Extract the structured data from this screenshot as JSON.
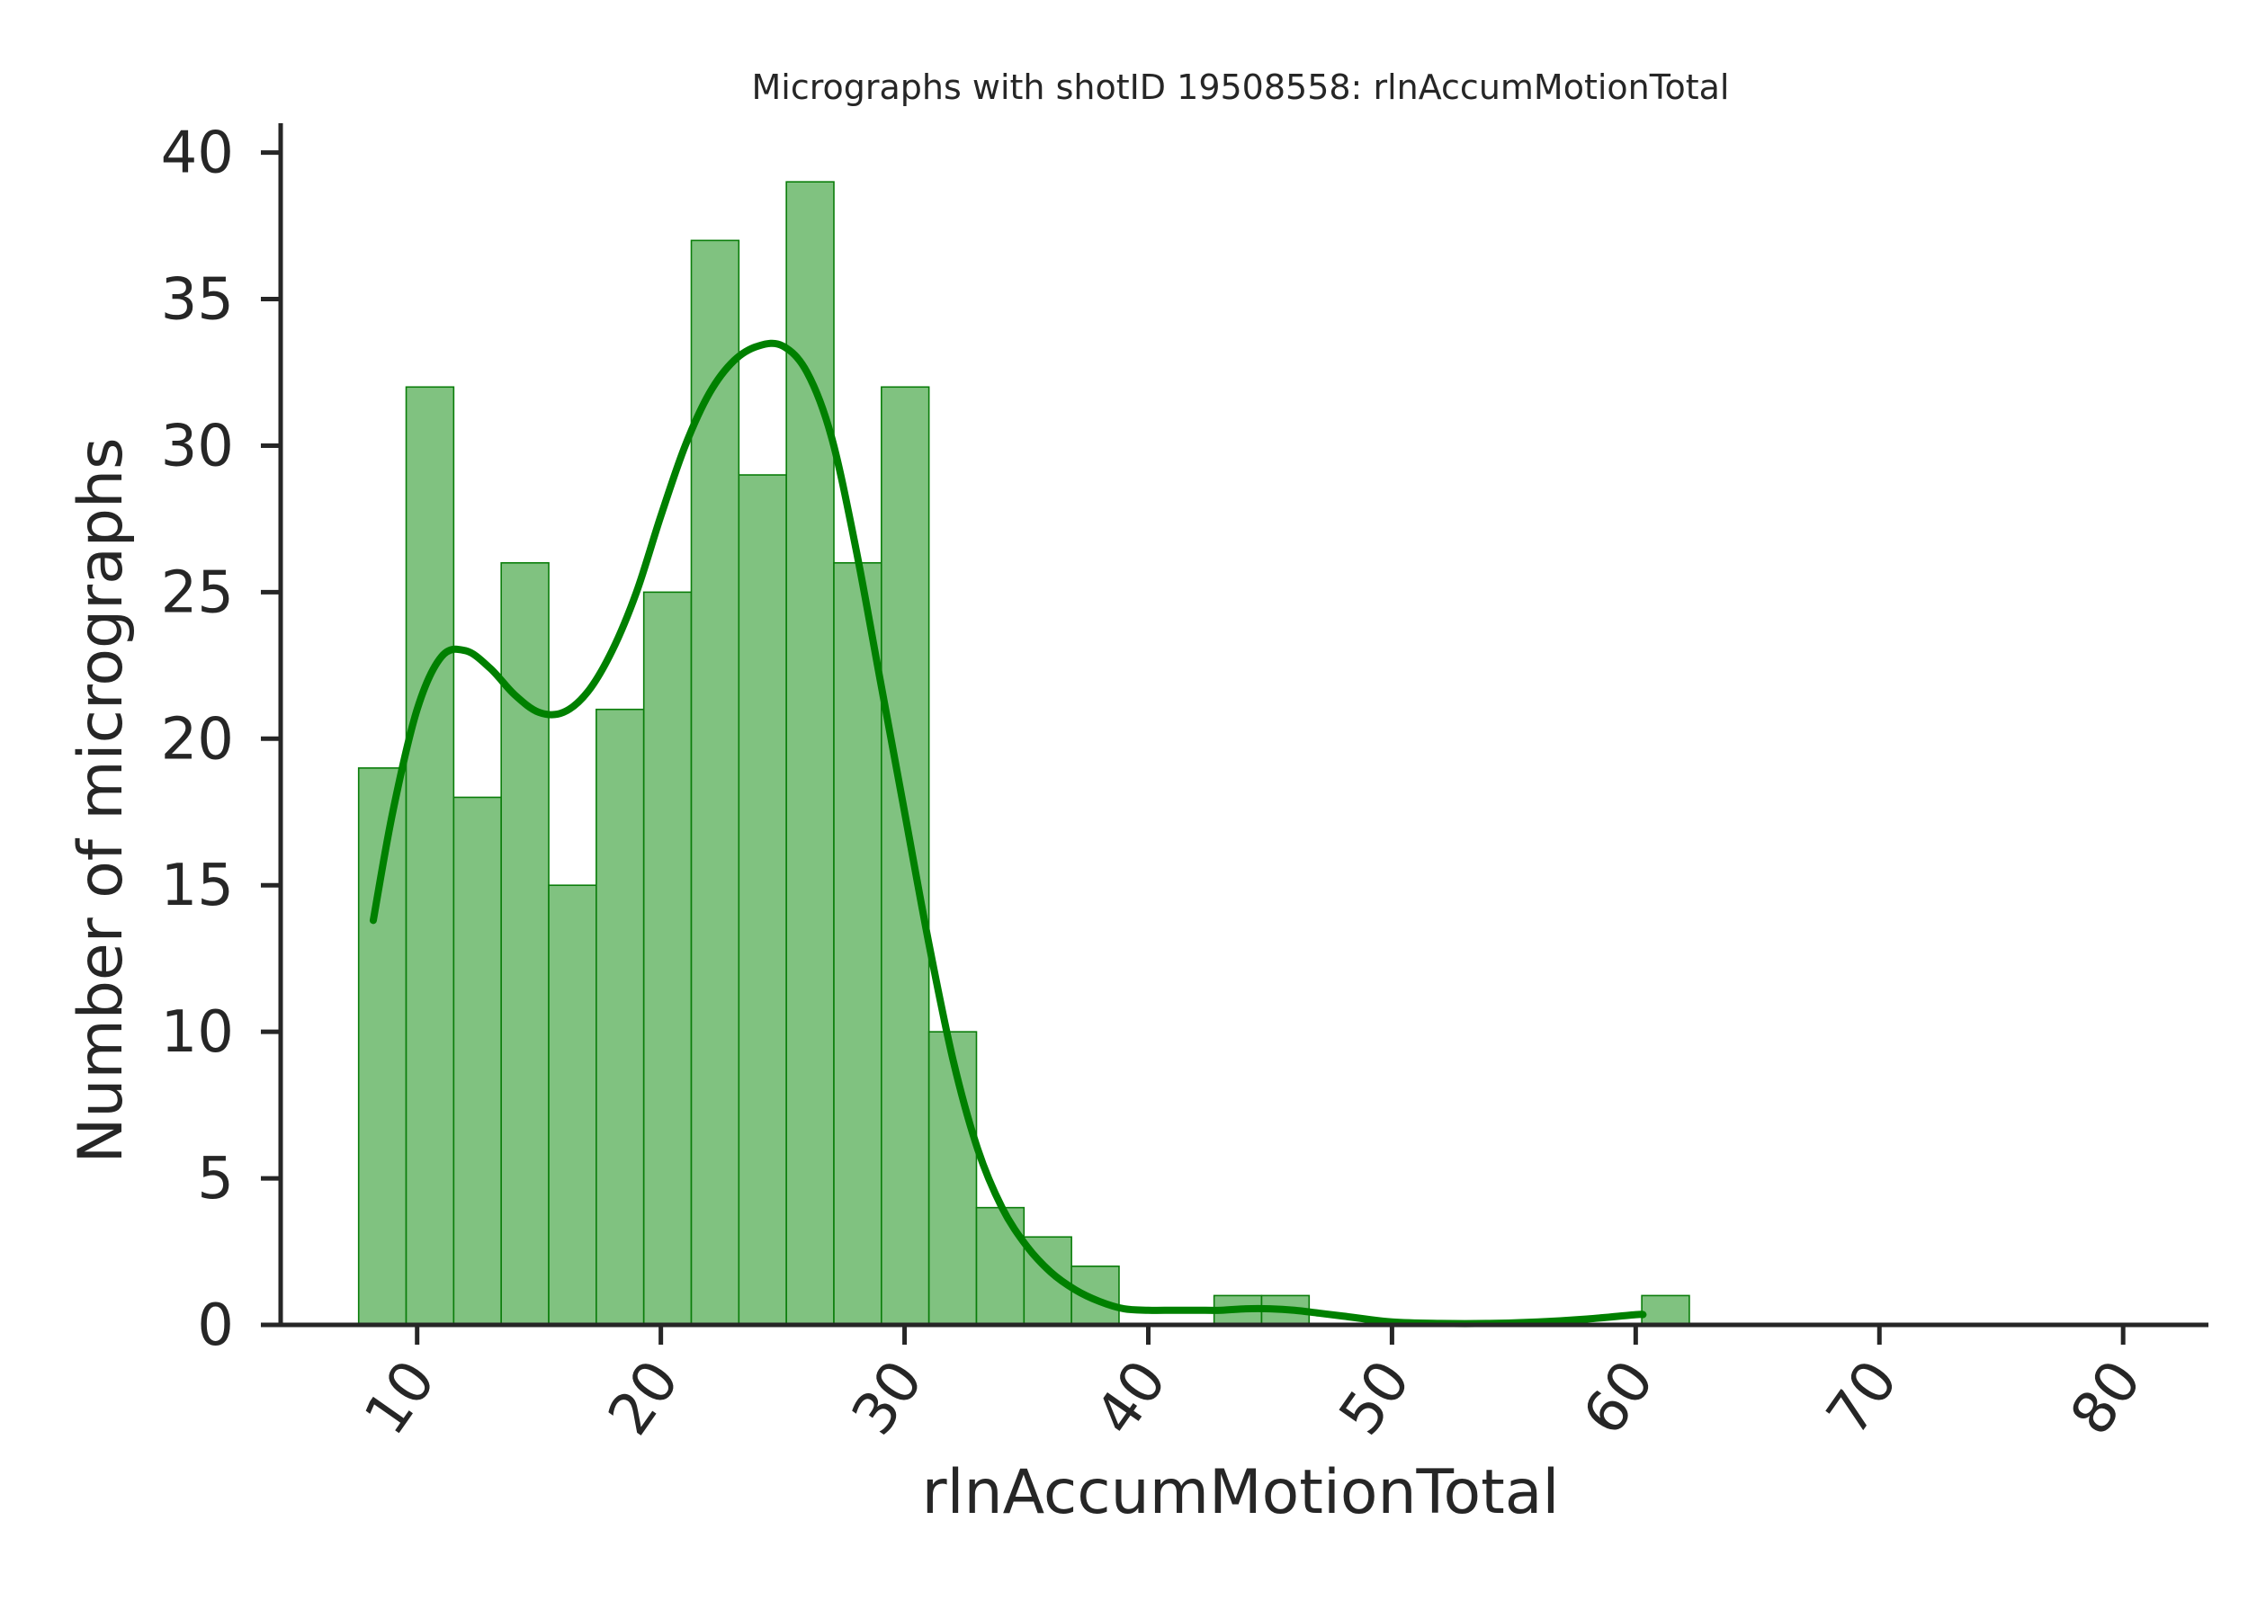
{
  "chart_data": {
    "type": "bar",
    "title": "Micrographs with shotID 19508558: rlnAccumMotionTotal",
    "xlabel": "rlnAccumMotionTotal",
    "ylabel": "Number of micrographs",
    "xlim": [
      4.4,
      83.5
    ],
    "ylim": [
      0,
      41
    ],
    "xticks": [
      10,
      20,
      30,
      40,
      50,
      60,
      70,
      80
    ],
    "yticks": [
      0,
      5,
      10,
      15,
      20,
      25,
      30,
      35,
      40
    ],
    "xtick_labels": [
      "10",
      "20",
      "30",
      "40",
      "50",
      "60",
      "70",
      "80"
    ],
    "ytick_labels": [
      "0",
      "5",
      "10",
      "15",
      "20",
      "25",
      "30",
      "35",
      "40"
    ],
    "grid": false,
    "bins": [
      {
        "x0": 7.6,
        "x1": 9.55,
        "count": 19
      },
      {
        "x0": 9.55,
        "x1": 11.5,
        "count": 32
      },
      {
        "x0": 11.5,
        "x1": 13.45,
        "count": 18
      },
      {
        "x0": 13.45,
        "x1": 15.4,
        "count": 26
      },
      {
        "x0": 15.4,
        "x1": 17.35,
        "count": 15
      },
      {
        "x0": 17.35,
        "x1": 19.3,
        "count": 21
      },
      {
        "x0": 19.3,
        "x1": 21.25,
        "count": 25
      },
      {
        "x0": 21.25,
        "x1": 23.2,
        "count": 37
      },
      {
        "x0": 23.2,
        "x1": 25.15,
        "count": 29
      },
      {
        "x0": 25.15,
        "x1": 27.1,
        "count": 39
      },
      {
        "x0": 27.1,
        "x1": 29.05,
        "count": 26
      },
      {
        "x0": 29.05,
        "x1": 31.0,
        "count": 32
      },
      {
        "x0": 31.0,
        "x1": 32.95,
        "count": 10
      },
      {
        "x0": 32.95,
        "x1": 34.9,
        "count": 4
      },
      {
        "x0": 34.9,
        "x1": 36.85,
        "count": 3
      },
      {
        "x0": 36.85,
        "x1": 38.8,
        "count": 2
      },
      {
        "x0": 38.8,
        "x1": 40.75,
        "count": 0
      },
      {
        "x0": 40.75,
        "x1": 42.7,
        "count": 0
      },
      {
        "x0": 42.7,
        "x1": 44.65,
        "count": 1
      },
      {
        "x0": 44.65,
        "x1": 46.6,
        "count": 1
      },
      {
        "x0": 46.6,
        "x1": 48.55,
        "count": 0
      },
      {
        "x0": 48.55,
        "x1": 50.5,
        "count": 0
      },
      {
        "x0": 50.5,
        "x1": 52.45,
        "count": 0
      },
      {
        "x0": 52.45,
        "x1": 54.4,
        "count": 0
      },
      {
        "x0": 54.4,
        "x1": 56.35,
        "count": 0
      },
      {
        "x0": 56.35,
        "x1": 58.3,
        "count": 0
      },
      {
        "x0": 58.3,
        "x1": 60.25,
        "count": 0
      },
      {
        "x0": 60.25,
        "x1": 62.2,
        "count": 1
      }
    ],
    "kde": {
      "x": [
        8.2,
        9.0,
        10.0,
        11.0,
        12.0,
        13.0,
        14.0,
        15.0,
        16.0,
        17.0,
        18.0,
        19.0,
        20.0,
        21.0,
        22.0,
        23.0,
        24.0,
        25.0,
        26.0,
        27.0,
        28.0,
        29.0,
        30.0,
        31.0,
        32.0,
        33.0,
        34.0,
        35.0,
        36.0,
        37.0,
        38.0,
        39.0,
        40.0,
        41.0,
        42.0,
        43.0,
        44.0,
        45.0,
        46.0,
        47.0,
        48.0,
        50.0,
        52.0,
        54.0,
        56.0,
        58.0,
        60.0,
        60.3
      ],
      "y": [
        13.8,
        17.5,
        21.0,
        22.8,
        23.0,
        22.4,
        21.5,
        20.9,
        20.9,
        21.6,
        23.0,
        25.0,
        27.6,
        30.0,
        31.8,
        32.9,
        33.4,
        33.4,
        32.5,
        30.3,
        26.5,
        22.0,
        17.5,
        13.0,
        9.0,
        6.0,
        4.0,
        2.7,
        1.8,
        1.2,
        0.8,
        0.55,
        0.5,
        0.5,
        0.5,
        0.5,
        0.55,
        0.55,
        0.5,
        0.4,
        0.3,
        0.1,
        0.05,
        0.05,
        0.1,
        0.2,
        0.35,
        0.35
      ]
    },
    "colors": {
      "bar_fill": "#80c280",
      "bar_edge": "#0a7d0a",
      "kde_line": "#008000",
      "axis": "#262626"
    }
  }
}
